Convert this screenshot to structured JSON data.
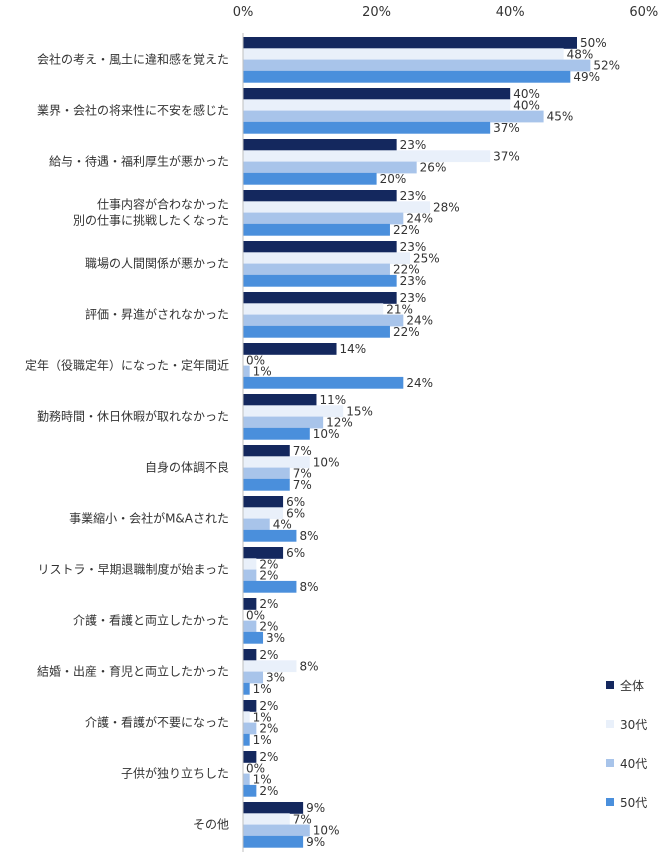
{
  "chart_data": {
    "type": "bar",
    "orientation": "horizontal",
    "xlim": [
      0,
      60
    ],
    "ticks": [
      0,
      20,
      40,
      60
    ],
    "tick_labels": [
      "0%",
      "20%",
      "40%",
      "60%"
    ],
    "value_suffix": "%",
    "legend_position": "bottom-right",
    "categories": [
      [
        "会社の考え・風土に違和感を覚えた"
      ],
      [
        "業界・会社の将来性に不安を感じた"
      ],
      [
        "給与・待遇・福利厚生が悪かった"
      ],
      [
        "仕事内容が合わなかった",
        "別の仕事に挑戦したくなった"
      ],
      [
        "職場の人間関係が悪かった"
      ],
      [
        "評価・昇進がされなかった"
      ],
      [
        "定年（役職定年）になった・定年間近"
      ],
      [
        "勤務時間・休日休暇が取れなかった"
      ],
      [
        "自身の体調不良"
      ],
      [
        "事業縮小・会社がM&Aされた"
      ],
      [
        "リストラ・早期退職制度が始まった"
      ],
      [
        "介護・看護と両立したかった"
      ],
      [
        "結婚・出産・育児と両立したかった"
      ],
      [
        "介護・看護が不要になった"
      ],
      [
        "子供が独り立ちした"
      ],
      [
        "その他"
      ]
    ],
    "series": [
      {
        "name": "全体",
        "color": "#14285e",
        "values": [
          50,
          40,
          23,
          23,
          23,
          23,
          14,
          11,
          7,
          6,
          6,
          2,
          2,
          2,
          2,
          9
        ]
      },
      {
        "name": "30代",
        "color": "#e9f0fa",
        "values": [
          48,
          40,
          37,
          28,
          25,
          21,
          0,
          15,
          10,
          6,
          2,
          0,
          8,
          1,
          0,
          7
        ]
      },
      {
        "name": "40代",
        "color": "#a8c4ea",
        "values": [
          52,
          45,
          26,
          24,
          22,
          24,
          1,
          12,
          7,
          4,
          2,
          2,
          3,
          2,
          1,
          10
        ]
      },
      {
        "name": "50代",
        "color": "#4a8fdc",
        "values": [
          49,
          37,
          20,
          22,
          23,
          22,
          24,
          10,
          7,
          8,
          8,
          3,
          1,
          1,
          2,
          9
        ]
      }
    ]
  }
}
